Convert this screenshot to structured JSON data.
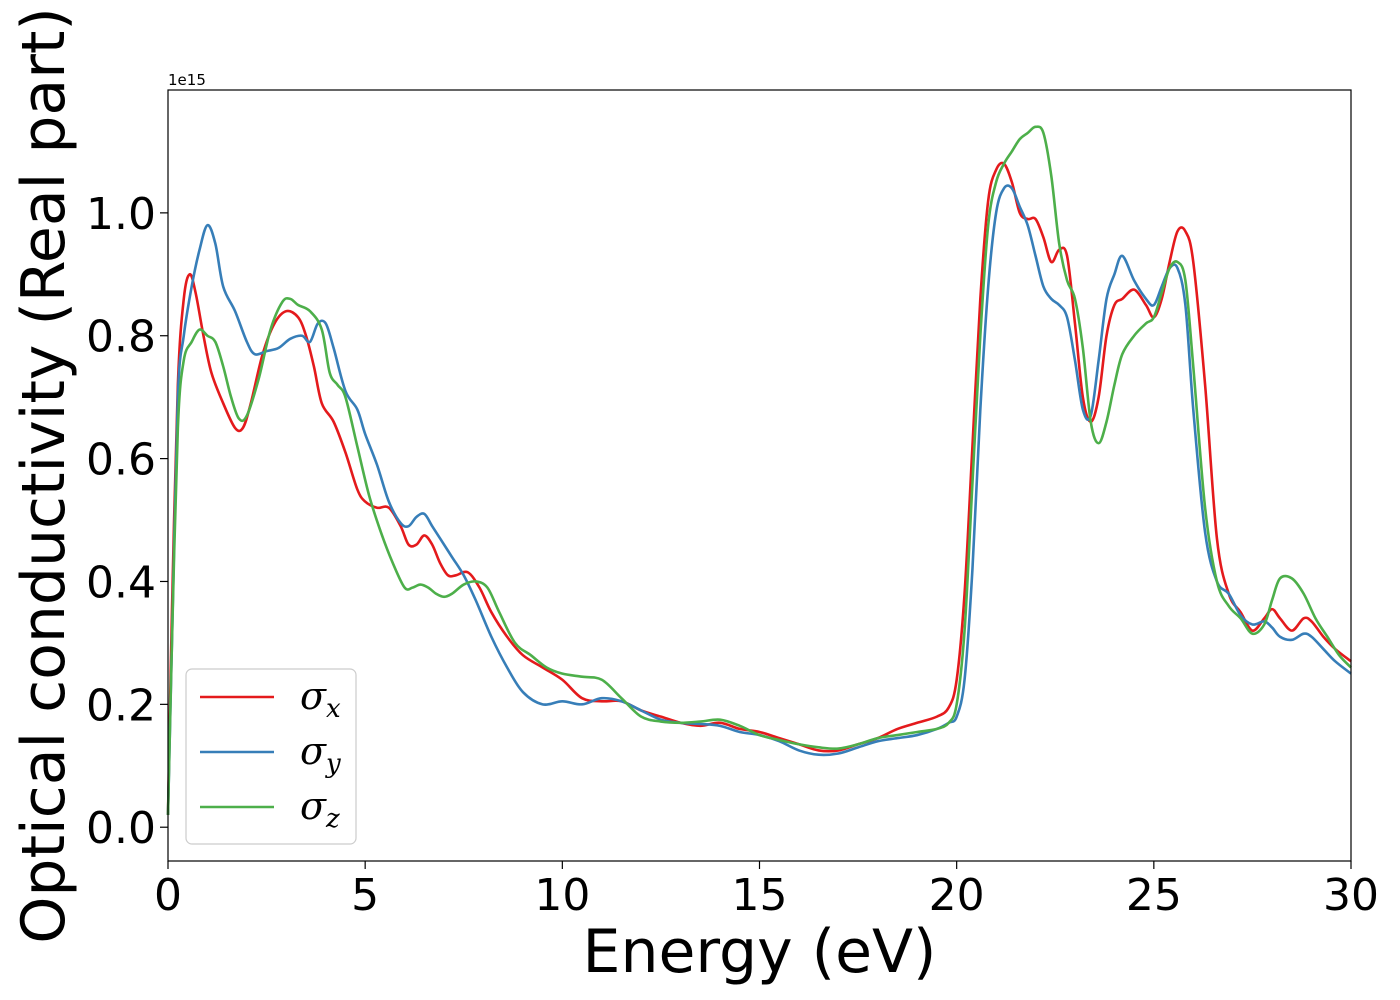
{
  "chart_data": {
    "type": "line",
    "xlabel": "Energy (eV)",
    "ylabel": "Optical conductivity (Real part)",
    "y_offset_label": "1e15",
    "y_scale_factor": 1000000000000000.0,
    "xlim": [
      0,
      30
    ],
    "ylim": [
      -0.055,
      1.2
    ],
    "xticks": [
      0,
      5,
      10,
      15,
      20,
      25,
      30
    ],
    "xtick_labels": [
      "0",
      "5",
      "10",
      "15",
      "20",
      "25",
      "30"
    ],
    "yticks": [
      0.0,
      0.2,
      0.4,
      0.6,
      0.8,
      1.0
    ],
    "ytick_labels": [
      "0.0",
      "0.2",
      "0.4",
      "0.6",
      "0.8",
      "1.0"
    ],
    "grid": false,
    "legend_position": "lower-left",
    "series": [
      {
        "name": "σx",
        "symbol": "σ",
        "subscript": "x",
        "color": "#e41a1c",
        "x": [
          0,
          0.1,
          0.25,
          0.4,
          0.55,
          0.7,
          0.9,
          1.1,
          1.4,
          1.7,
          1.9,
          2.1,
          2.4,
          2.7,
          3.0,
          3.3,
          3.5,
          3.7,
          3.9,
          4.2,
          4.5,
          4.8,
          5.0,
          5.3,
          5.6,
          5.9,
          6.1,
          6.3,
          6.5,
          6.7,
          6.9,
          7.1,
          7.3,
          7.6,
          7.9,
          8.2,
          8.6,
          9.0,
          9.5,
          10.0,
          10.5,
          11.0,
          11.5,
          12.0,
          12.5,
          13.0,
          13.5,
          14.0,
          14.5,
          15.0,
          15.5,
          16.0,
          16.5,
          17.0,
          17.5,
          18.0,
          18.5,
          19.0,
          19.5,
          19.8,
          20.0,
          20.2,
          20.4,
          20.6,
          20.8,
          21.0,
          21.2,
          21.4,
          21.6,
          21.8,
          22.0,
          22.2,
          22.4,
          22.6,
          22.8,
          23.0,
          23.2,
          23.4,
          23.6,
          23.8,
          24.0,
          24.2,
          24.5,
          24.8,
          25.0,
          25.2,
          25.4,
          25.6,
          25.8,
          26.0,
          26.3,
          26.6,
          26.9,
          27.2,
          27.5,
          27.8,
          28.0,
          28.2,
          28.5,
          28.8,
          29.0,
          29.3,
          29.6,
          30.0
        ],
        "y": [
          0.02,
          0.35,
          0.72,
          0.86,
          0.9,
          0.87,
          0.8,
          0.74,
          0.69,
          0.65,
          0.65,
          0.69,
          0.77,
          0.82,
          0.84,
          0.83,
          0.8,
          0.75,
          0.69,
          0.66,
          0.61,
          0.55,
          0.53,
          0.52,
          0.52,
          0.49,
          0.46,
          0.46,
          0.475,
          0.46,
          0.43,
          0.41,
          0.41,
          0.415,
          0.39,
          0.35,
          0.31,
          0.28,
          0.26,
          0.24,
          0.21,
          0.205,
          0.205,
          0.19,
          0.18,
          0.17,
          0.165,
          0.17,
          0.16,
          0.155,
          0.145,
          0.135,
          0.125,
          0.125,
          0.135,
          0.145,
          0.16,
          0.17,
          0.18,
          0.195,
          0.24,
          0.38,
          0.62,
          0.86,
          1.02,
          1.07,
          1.08,
          1.05,
          1.0,
          0.99,
          0.99,
          0.96,
          0.92,
          0.94,
          0.93,
          0.82,
          0.7,
          0.66,
          0.7,
          0.8,
          0.85,
          0.86,
          0.875,
          0.85,
          0.83,
          0.86,
          0.92,
          0.97,
          0.97,
          0.92,
          0.72,
          0.47,
          0.38,
          0.35,
          0.32,
          0.34,
          0.355,
          0.34,
          0.32,
          0.34,
          0.335,
          0.31,
          0.29,
          0.27
        ]
      },
      {
        "name": "σy",
        "symbol": "σ",
        "subscript": "y",
        "color": "#377eb8",
        "x": [
          0,
          0.1,
          0.25,
          0.4,
          0.6,
          0.8,
          1.0,
          1.2,
          1.4,
          1.7,
          2.0,
          2.2,
          2.5,
          2.8,
          3.1,
          3.4,
          3.6,
          3.8,
          4.0,
          4.2,
          4.5,
          4.8,
          5.0,
          5.3,
          5.6,
          5.9,
          6.1,
          6.3,
          6.5,
          6.7,
          6.9,
          7.2,
          7.5,
          7.8,
          8.2,
          8.6,
          9.0,
          9.5,
          10.0,
          10.5,
          11.0,
          11.5,
          12.0,
          12.5,
          13.0,
          13.5,
          14.0,
          14.5,
          15.0,
          15.5,
          16.0,
          16.5,
          17.0,
          17.5,
          18.0,
          18.5,
          19.0,
          19.5,
          19.8,
          20.0,
          20.2,
          20.4,
          20.6,
          20.8,
          21.0,
          21.2,
          21.4,
          21.6,
          21.8,
          22.0,
          22.2,
          22.4,
          22.6,
          22.8,
          23.0,
          23.2,
          23.4,
          23.6,
          23.8,
          24.0,
          24.2,
          24.5,
          24.8,
          25.0,
          25.2,
          25.4,
          25.6,
          25.8,
          26.0,
          26.3,
          26.6,
          26.9,
          27.2,
          27.5,
          27.8,
          28.0,
          28.2,
          28.5,
          28.8,
          29.0,
          29.3,
          29.6,
          30.0
        ],
        "y": [
          0.02,
          0.3,
          0.7,
          0.8,
          0.88,
          0.94,
          0.98,
          0.95,
          0.88,
          0.84,
          0.79,
          0.77,
          0.775,
          0.78,
          0.795,
          0.8,
          0.79,
          0.82,
          0.82,
          0.78,
          0.71,
          0.68,
          0.64,
          0.59,
          0.53,
          0.495,
          0.49,
          0.505,
          0.51,
          0.49,
          0.47,
          0.44,
          0.41,
          0.37,
          0.31,
          0.26,
          0.22,
          0.2,
          0.205,
          0.2,
          0.21,
          0.205,
          0.19,
          0.175,
          0.17,
          0.168,
          0.165,
          0.155,
          0.15,
          0.14,
          0.125,
          0.118,
          0.12,
          0.13,
          0.14,
          0.145,
          0.15,
          0.16,
          0.17,
          0.18,
          0.24,
          0.42,
          0.68,
          0.88,
          1.0,
          1.04,
          1.04,
          1.01,
          0.98,
          0.93,
          0.88,
          0.86,
          0.85,
          0.83,
          0.76,
          0.68,
          0.67,
          0.76,
          0.86,
          0.9,
          0.93,
          0.89,
          0.86,
          0.85,
          0.88,
          0.91,
          0.91,
          0.85,
          0.68,
          0.48,
          0.4,
          0.38,
          0.345,
          0.33,
          0.335,
          0.325,
          0.31,
          0.305,
          0.315,
          0.31,
          0.29,
          0.27,
          0.25
        ]
      },
      {
        "name": "σz",
        "symbol": "σ",
        "subscript": "z",
        "color": "#4daf4a",
        "x": [
          0,
          0.1,
          0.25,
          0.4,
          0.6,
          0.8,
          1.0,
          1.2,
          1.4,
          1.6,
          1.8,
          2.0,
          2.3,
          2.6,
          2.9,
          3.1,
          3.3,
          3.6,
          3.9,
          4.1,
          4.3,
          4.5,
          4.8,
          5.1,
          5.4,
          5.7,
          6.0,
          6.2,
          6.4,
          6.6,
          6.8,
          7.0,
          7.2,
          7.5,
          7.8,
          8.1,
          8.4,
          8.8,
          9.2,
          9.6,
          10.0,
          10.5,
          11.0,
          11.5,
          12.0,
          12.5,
          13.0,
          13.5,
          14.0,
          14.5,
          15.0,
          15.5,
          16.0,
          16.5,
          17.0,
          17.5,
          18.0,
          18.5,
          19.0,
          19.5,
          19.8,
          20.0,
          20.2,
          20.4,
          20.6,
          20.8,
          21.0,
          21.2,
          21.4,
          21.6,
          21.8,
          22.0,
          22.2,
          22.4,
          22.6,
          22.8,
          23.0,
          23.2,
          23.4,
          23.6,
          23.8,
          24.0,
          24.2,
          24.5,
          24.8,
          25.0,
          25.2,
          25.4,
          25.6,
          25.8,
          26.0,
          26.3,
          26.6,
          26.9,
          27.2,
          27.5,
          27.8,
          28.0,
          28.2,
          28.5,
          28.8,
          29.1,
          29.4,
          29.7,
          30.0
        ],
        "y": [
          0.02,
          0.3,
          0.65,
          0.76,
          0.79,
          0.81,
          0.8,
          0.79,
          0.75,
          0.7,
          0.665,
          0.67,
          0.73,
          0.81,
          0.855,
          0.86,
          0.85,
          0.84,
          0.81,
          0.74,
          0.72,
          0.7,
          0.62,
          0.54,
          0.48,
          0.43,
          0.39,
          0.39,
          0.395,
          0.39,
          0.38,
          0.375,
          0.38,
          0.395,
          0.4,
          0.39,
          0.35,
          0.3,
          0.28,
          0.26,
          0.25,
          0.245,
          0.24,
          0.21,
          0.18,
          0.172,
          0.17,
          0.172,
          0.175,
          0.165,
          0.15,
          0.142,
          0.135,
          0.13,
          0.128,
          0.135,
          0.145,
          0.15,
          0.155,
          0.16,
          0.17,
          0.2,
          0.32,
          0.56,
          0.8,
          0.98,
          1.05,
          1.08,
          1.1,
          1.12,
          1.13,
          1.14,
          1.13,
          1.06,
          0.95,
          0.89,
          0.86,
          0.78,
          0.66,
          0.625,
          0.66,
          0.72,
          0.77,
          0.8,
          0.82,
          0.83,
          0.87,
          0.91,
          0.92,
          0.89,
          0.75,
          0.52,
          0.4,
          0.36,
          0.34,
          0.315,
          0.33,
          0.37,
          0.405,
          0.405,
          0.38,
          0.34,
          0.31,
          0.28,
          0.26
        ]
      }
    ]
  }
}
